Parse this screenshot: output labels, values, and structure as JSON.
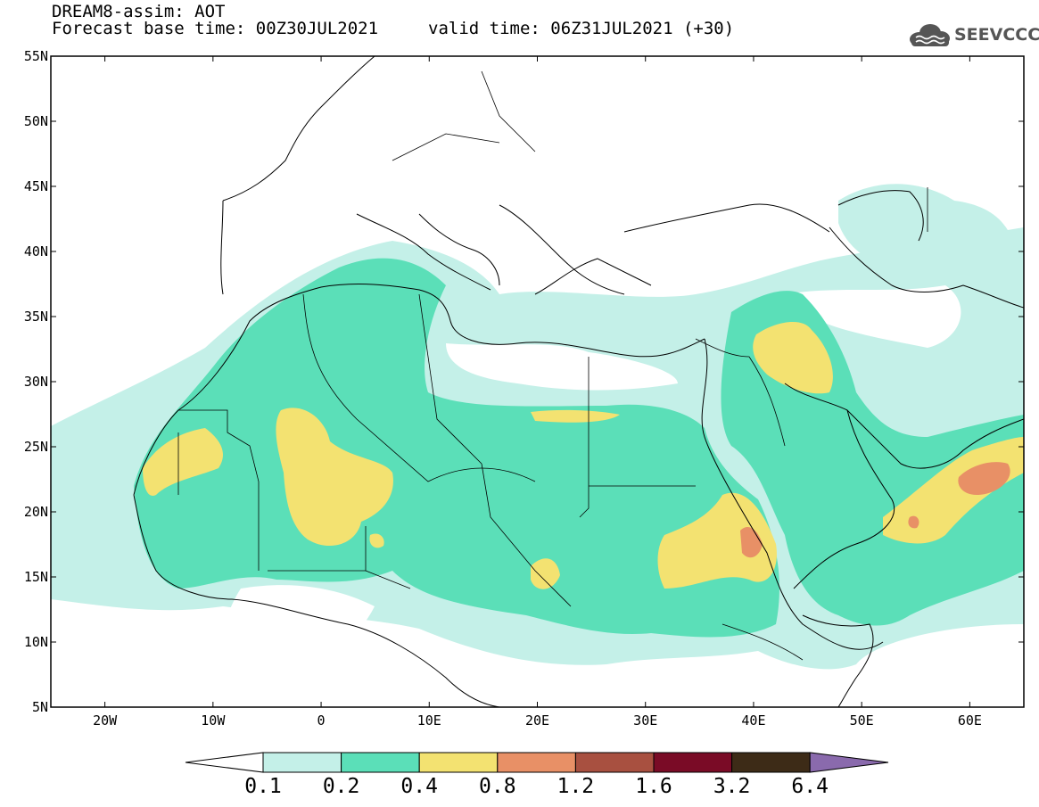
{
  "header": {
    "title": "DREAM8-assim: AOT",
    "base_time": "Forecast base time: 00Z30JUL2021",
    "valid_time": "valid time: 06Z31JUL2021 (+30)"
  },
  "logo": {
    "text": "SEEVCCC",
    "icon": "cloud-icon"
  },
  "map": {
    "projection": "lat-lon",
    "lon_range": [
      -25,
      65
    ],
    "lat_range": [
      5,
      55
    ],
    "lat_ticks": [
      "5N",
      "10N",
      "15N",
      "20N",
      "25N",
      "30N",
      "35N",
      "40N",
      "45N",
      "50N",
      "55N"
    ],
    "lon_ticks": [
      "20W",
      "10W",
      "0",
      "10E",
      "20E",
      "30E",
      "40E",
      "50E",
      "60E"
    ]
  },
  "colorbar": {
    "levels": [
      "0.1",
      "0.2",
      "0.4",
      "0.8",
      "1.2",
      "1.6",
      "3.2",
      "6.4"
    ],
    "colors": [
      "#c4f0e8",
      "#5bdfb8",
      "#f3e271",
      "#e89066",
      "#a85040",
      "#7a0b26",
      "#3d2b17",
      "#8a6aad"
    ]
  }
}
